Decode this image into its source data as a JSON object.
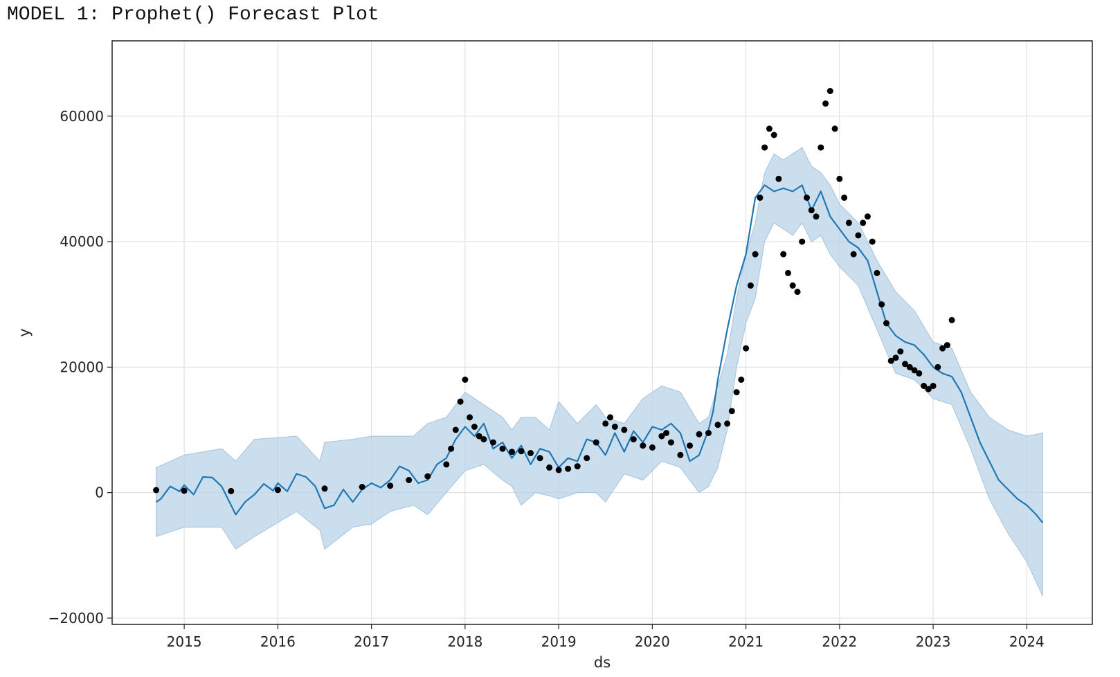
{
  "caption": "MODEL 1: Prophet() Forecast Plot",
  "chart_data": {
    "type": "line",
    "xlabel": "ds",
    "ylabel": "y",
    "xlim": [
      2014.23,
      2024.7
    ],
    "ylim": [
      -21000,
      72000
    ],
    "x_ticks": [
      2015,
      2016,
      2017,
      2018,
      2019,
      2020,
      2021,
      2022,
      2023,
      2024
    ],
    "x_tick_labels": [
      "2015",
      "2016",
      "2017",
      "2018",
      "2019",
      "2020",
      "2021",
      "2022",
      "2023",
      "2024"
    ],
    "y_ticks": [
      -20000,
      0,
      20000,
      40000,
      60000
    ],
    "y_tick_labels": [
      "−20000",
      "0",
      "20000",
      "40000",
      "60000"
    ],
    "grid": true,
    "colors": {
      "forecast": "#1f77b4",
      "band": "#b9d3e8",
      "band_edge": "#a3c3dd",
      "observed": "#000000"
    },
    "series": [
      {
        "role": "forecast yhat",
        "x": [
          2014.7,
          2014.75,
          2014.85,
          2014.95,
          2015.0,
          2015.1,
          2015.2,
          2015.3,
          2015.4,
          2015.5,
          2015.55,
          2015.65,
          2015.75,
          2015.85,
          2015.95,
          2016.0,
          2016.1,
          2016.2,
          2016.3,
          2016.4,
          2016.5,
          2016.6,
          2016.7,
          2016.8,
          2016.9,
          2017.0,
          2017.1,
          2017.2,
          2017.3,
          2017.4,
          2017.5,
          2017.6,
          2017.7,
          2017.8,
          2017.9,
          2018.0,
          2018.1,
          2018.2,
          2018.3,
          2018.4,
          2018.5,
          2018.6,
          2018.7,
          2018.8,
          2018.9,
          2019.0,
          2019.1,
          2019.2,
          2019.3,
          2019.4,
          2019.5,
          2019.6,
          2019.7,
          2019.8,
          2019.9,
          2020.0,
          2020.1,
          2020.2,
          2020.3,
          2020.4,
          2020.5,
          2020.6,
          2020.65,
          2020.7,
          2020.8,
          2020.9,
          2021.0,
          2021.1,
          2021.2,
          2021.3,
          2021.4,
          2021.5,
          2021.6,
          2021.7,
          2021.8,
          2021.9,
          2022.0,
          2022.1,
          2022.2,
          2022.3,
          2022.4,
          2022.5,
          2022.6,
          2022.7,
          2022.8,
          2022.9,
          2023.0,
          2023.1,
          2023.2,
          2023.3,
          2023.4,
          2023.5,
          2023.6,
          2023.7,
          2023.8,
          2023.9,
          2024.0,
          2024.1,
          2024.17
        ],
        "y": [
          -1500,
          -1000,
          1000,
          200,
          1200,
          -300,
          2500,
          2400,
          1000,
          -2000,
          -3500,
          -1500,
          -300,
          1400,
          300,
          1500,
          200,
          3000,
          2500,
          1000,
          -2500,
          -2000,
          500,
          -1500,
          500,
          1500,
          800,
          2000,
          4200,
          3500,
          1500,
          2000,
          4500,
          5500,
          8500,
          10500,
          9000,
          11000,
          7000,
          8000,
          5500,
          7500,
          4500,
          7000,
          6500,
          4000,
          5500,
          5000,
          8500,
          8000,
          6000,
          9500,
          6500,
          9800,
          8000,
          10500,
          10000,
          11000,
          9500,
          5000,
          6000,
          10000,
          13000,
          18000,
          26000,
          33000,
          38000,
          47000,
          49000,
          48000,
          48500,
          48000,
          49000,
          45000,
          48000,
          44000,
          42000,
          40000,
          39000,
          37000,
          32000,
          27000,
          25000,
          24000,
          23500,
          22000,
          20000,
          19000,
          18500,
          16000,
          12000,
          8000,
          5000,
          2000,
          500,
          -1000,
          -2000,
          -3500,
          -4800
        ]
      },
      {
        "role": "forecast band",
        "x": [
          2014.7,
          2015.0,
          2015.4,
          2015.55,
          2015.75,
          2016.2,
          2016.45,
          2016.5,
          2016.8,
          2017.0,
          2017.2,
          2017.45,
          2017.6,
          2017.8,
          2018.0,
          2018.2,
          2018.4,
          2018.5,
          2018.6,
          2018.75,
          2018.9,
          2019.0,
          2019.2,
          2019.4,
          2019.5,
          2019.7,
          2019.9,
          2020.1,
          2020.3,
          2020.5,
          2020.6,
          2020.7,
          2020.8,
          2020.9,
          2021.0,
          2021.1,
          2021.2,
          2021.3,
          2021.4,
          2021.5,
          2021.6,
          2021.7,
          2021.8,
          2021.9,
          2022.0,
          2022.2,
          2022.4,
          2022.6,
          2022.8,
          2023.0,
          2023.2,
          2023.4,
          2023.6,
          2023.8,
          2024.0,
          2024.17
        ],
        "lower": [
          -7000,
          -5500,
          -5500,
          -9000,
          -7000,
          -3000,
          -6000,
          -9000,
          -5500,
          -5000,
          -3000,
          -2000,
          -3500,
          0,
          3500,
          4500,
          2000,
          1000,
          -2000,
          0,
          -500,
          -1000,
          0,
          0,
          -1500,
          3000,
          2000,
          5000,
          4000,
          0,
          1000,
          4000,
          10000,
          20000,
          27000,
          31000,
          40000,
          43000,
          42000,
          41000,
          43000,
          40000,
          41000,
          38000,
          36000,
          33000,
          26000,
          19000,
          18000,
          15000,
          14000,
          7000,
          -1000,
          -6500,
          -11000,
          -16500
        ],
        "upper": [
          4000,
          6000,
          7000,
          5000,
          8500,
          9000,
          5000,
          8000,
          8500,
          9000,
          9000,
          9000,
          11000,
          12000,
          16000,
          14000,
          12000,
          10000,
          12000,
          12000,
          10000,
          14500,
          11000,
          14000,
          12000,
          11000,
          15000,
          17000,
          16000,
          11000,
          12000,
          17000,
          22000,
          31000,
          38000,
          43000,
          51000,
          54000,
          53000,
          54000,
          55000,
          52000,
          51000,
          49000,
          46000,
          43000,
          37000,
          32000,
          29000,
          24000,
          23000,
          16000,
          12000,
          10000,
          9000,
          9500
        ]
      },
      {
        "role": "observed y",
        "x": [
          2014.7,
          2015.0,
          2015.5,
          2016.0,
          2016.5,
          2016.9,
          2017.2,
          2017.4,
          2017.6,
          2017.8,
          2017.85,
          2017.9,
          2017.95,
          2018.0,
          2018.05,
          2018.1,
          2018.15,
          2018.2,
          2018.3,
          2018.4,
          2018.5,
          2018.6,
          2018.7,
          2018.8,
          2018.9,
          2019.0,
          2019.1,
          2019.2,
          2019.3,
          2019.4,
          2019.5,
          2019.55,
          2019.6,
          2019.7,
          2019.8,
          2019.9,
          2020.0,
          2020.1,
          2020.15,
          2020.2,
          2020.3,
          2020.4,
          2020.5,
          2020.6,
          2020.7,
          2020.8,
          2020.85,
          2020.9,
          2020.95,
          2021.0,
          2021.05,
          2021.1,
          2021.15,
          2021.2,
          2021.25,
          2021.3,
          2021.35,
          2021.4,
          2021.45,
          2021.5,
          2021.55,
          2021.6,
          2021.65,
          2021.7,
          2021.75,
          2021.8,
          2021.85,
          2021.9,
          2021.95,
          2022.0,
          2022.05,
          2022.1,
          2022.15,
          2022.2,
          2022.25,
          2022.3,
          2022.35,
          2022.4,
          2022.45,
          2022.5,
          2022.55,
          2022.6,
          2022.65,
          2022.7,
          2022.75,
          2022.8,
          2022.85,
          2022.9,
          2022.95,
          2023.0,
          2023.05,
          2023.1,
          2023.15,
          2023.2
        ],
        "y": [
          400,
          300,
          250,
          420,
          650,
          900,
          1100,
          2000,
          2600,
          4500,
          7000,
          10000,
          14500,
          18000,
          12000,
          10500,
          9000,
          8500,
          8000,
          7000,
          6500,
          6600,
          6300,
          5500,
          4000,
          3600,
          3800,
          4200,
          5500,
          8000,
          11000,
          12000,
          10500,
          10000,
          8500,
          7500,
          7200,
          9000,
          9500,
          8000,
          6000,
          7500,
          9300,
          9500,
          10800,
          11000,
          13000,
          16000,
          18000,
          23000,
          33000,
          38000,
          47000,
          55000,
          58000,
          57000,
          50000,
          38000,
          35000,
          33000,
          32000,
          40000,
          47000,
          45000,
          44000,
          55000,
          62000,
          64000,
          58000,
          50000,
          47000,
          43000,
          38000,
          41000,
          43000,
          44000,
          40000,
          35000,
          30000,
          27000,
          21000,
          21500,
          22500,
          20500,
          20000,
          19500,
          19000,
          17000,
          16500,
          17000,
          20000,
          23000,
          23500,
          27500
        ]
      }
    ]
  }
}
